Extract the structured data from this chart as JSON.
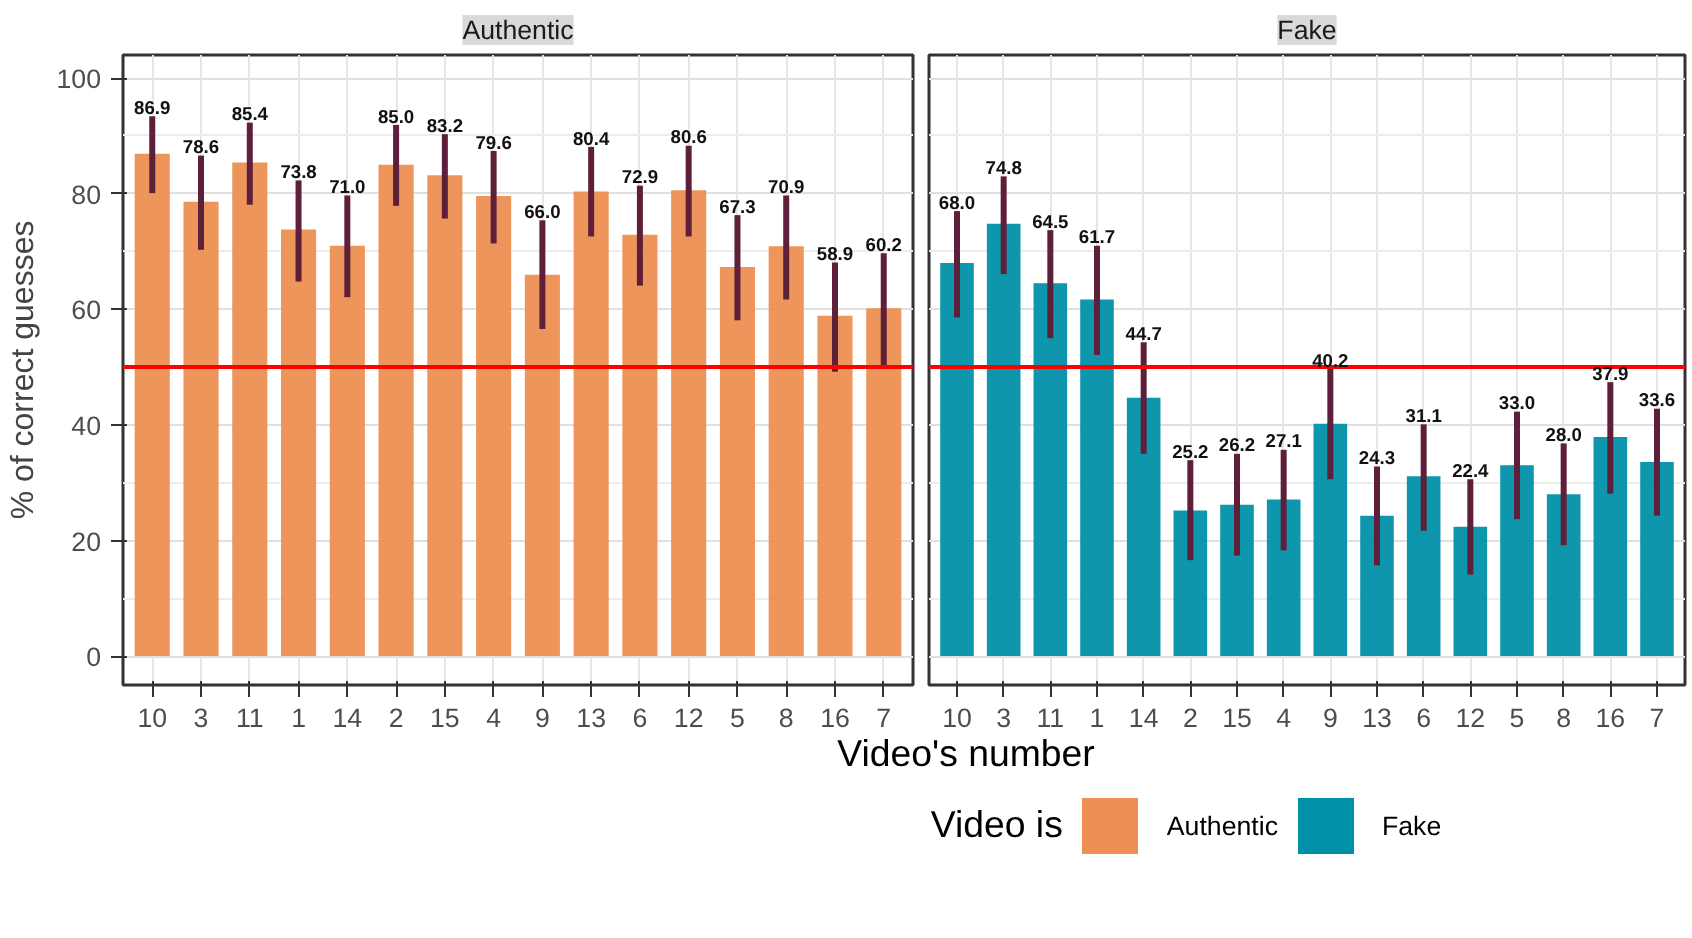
{
  "chart_data": [
    {
      "type": "bar",
      "title": "Authentic",
      "ylabel": "% of correct guesses",
      "xlabel": "Video's number",
      "legend_title": "Video is",
      "legend": "bottom",
      "grid": true,
      "categories": [
        "10",
        "3",
        "11",
        "1",
        "14",
        "2",
        "15",
        "4",
        "9",
        "13",
        "6",
        "12",
        "5",
        "8",
        "16",
        "7"
      ],
      "series": [
        {
          "name": "Authentic",
          "color": "#ec8f52",
          "values": [
            86.9,
            78.6,
            85.4,
            73.8,
            71.0,
            85.0,
            83.2,
            79.6,
            66.0,
            80.4,
            72.9,
            80.6,
            67.3,
            70.9,
            58.9,
            60.2
          ],
          "value_labels": [
            "86.9",
            "78.6",
            "85.4",
            "73.8",
            "71.0",
            "85.0",
            "83.2",
            "79.6",
            "66.0",
            "80.4",
            "72.9",
            "80.6",
            "67.3",
            "70.9",
            "58.9",
            "60.2"
          ],
          "errors": [
            [
              80.1,
              93.4
            ],
            [
              70.3,
              86.6
            ],
            [
              78.1,
              92.3
            ],
            [
              64.8,
              82.3
            ],
            [
              62.1,
              79.7
            ],
            [
              77.9,
              91.9
            ],
            [
              75.7,
              90.3
            ],
            [
              71.4,
              87.4
            ],
            [
              56.6,
              75.4
            ],
            [
              72.6,
              88.1
            ],
            [
              64.1,
              81.4
            ],
            [
              72.6,
              88.3
            ],
            [
              58.1,
              76.3
            ],
            [
              61.7,
              79.7
            ],
            [
              49.2,
              68.1
            ],
            [
              50.3,
              69.7
            ]
          ]
        }
      ],
      "ylim": [
        -5,
        104
      ],
      "yticks": [
        0,
        20,
        40,
        60,
        80,
        100
      ],
      "ref_lines": [
        {
          "axis": "y",
          "value": 50,
          "color": "#ff0000"
        }
      ]
    },
    {
      "type": "bar",
      "title": "Fake",
      "legend": "bottom",
      "grid": true,
      "tick_labels": "x",
      "categories": [
        "10",
        "3",
        "11",
        "1",
        "14",
        "2",
        "15",
        "4",
        "9",
        "13",
        "6",
        "12",
        "5",
        "8",
        "16",
        "7"
      ],
      "series": [
        {
          "name": "Fake",
          "color": "#0090a8",
          "values": [
            68.0,
            74.8,
            64.5,
            61.7,
            44.7,
            25.2,
            26.2,
            27.1,
            40.2,
            24.3,
            31.1,
            22.4,
            33.0,
            28.0,
            37.9,
            33.6
          ],
          "value_labels": [
            "68.0",
            "74.8",
            "64.5",
            "61.7",
            "44.7",
            "25.2",
            "26.2",
            "27.1",
            "40.2",
            "24.3",
            "31.1",
            "22.4",
            "33.0",
            "28.0",
            "37.9",
            "33.6"
          ],
          "errors": [
            [
              58.6,
              77.0
            ],
            [
              66.1,
              83.0
            ],
            [
              55.0,
              73.7
            ],
            [
              52.1,
              71.0
            ],
            [
              35.0,
              54.3
            ],
            [
              16.6,
              33.9
            ],
            [
              17.4,
              35.0
            ],
            [
              18.3,
              35.7
            ],
            [
              30.6,
              49.7
            ],
            [
              15.7,
              32.8
            ],
            [
              21.7,
              40.1
            ],
            [
              14.1,
              30.6
            ],
            [
              23.7,
              42.3
            ],
            [
              19.2,
              36.8
            ],
            [
              28.1,
              47.4
            ],
            [
              24.3,
              42.8
            ]
          ]
        }
      ],
      "ylim": [
        -5,
        104
      ],
      "yticks": [
        0,
        20,
        40,
        60,
        80,
        100
      ],
      "ref_lines": [
        {
          "axis": "y",
          "value": 50,
          "color": "#ff0000"
        }
      ]
    }
  ]
}
